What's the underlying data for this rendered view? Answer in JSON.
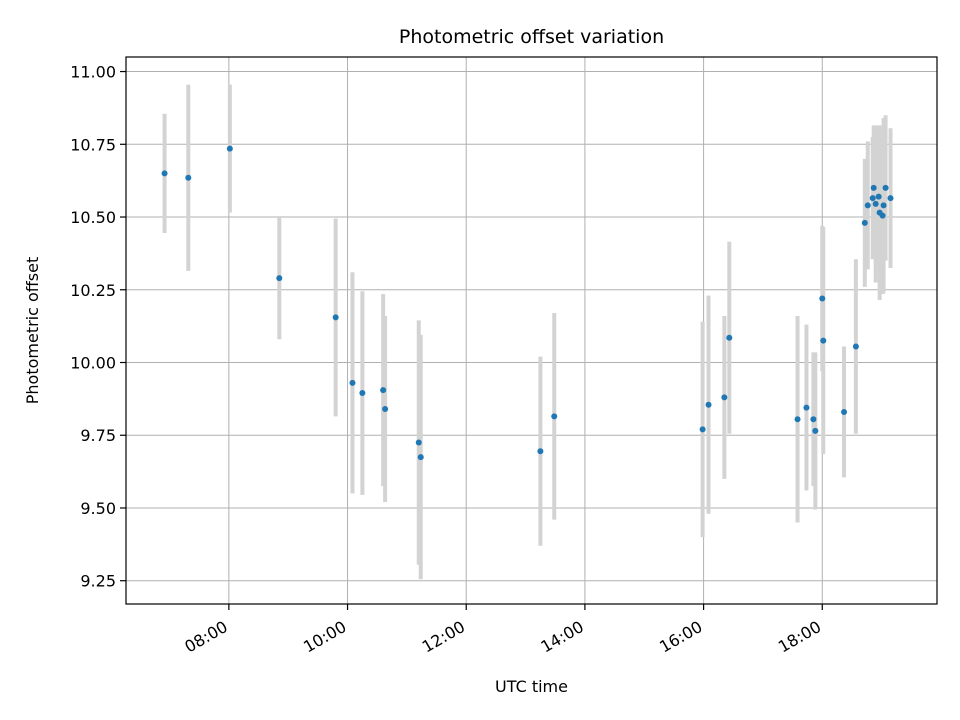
{
  "chart_data": {
    "type": "scatter",
    "title": "Photometric offset variation",
    "xlabel": "UTC time",
    "ylabel": "Photometric offset",
    "x_unit": "hours UTC",
    "xlim": [
      "06:16",
      "19:56"
    ],
    "ylim": [
      9.17,
      11.05
    ],
    "x_ticks": [
      "08:00",
      "10:00",
      "12:00",
      "14:00",
      "16:00",
      "18:00"
    ],
    "y_ticks": [
      "9.25",
      "9.50",
      "9.75",
      "10.00",
      "10.25",
      "10.50",
      "10.75",
      "11.00"
    ],
    "grid": true,
    "point_color": "#1f77b4",
    "errorbar_color": "#d3d3d3",
    "points": [
      {
        "time": "06:55",
        "y": 10.65,
        "err": 0.205
      },
      {
        "time": "07:19",
        "y": 10.635,
        "err": 0.32
      },
      {
        "time": "08:01",
        "y": 10.735,
        "err": 0.22
      },
      {
        "time": "08:51",
        "y": 10.29,
        "err": 0.21
      },
      {
        "time": "09:48",
        "y": 10.155,
        "err": 0.34
      },
      {
        "time": "10:05",
        "y": 9.93,
        "err": 0.38
      },
      {
        "time": "10:15",
        "y": 9.895,
        "err": 0.35
      },
      {
        "time": "10:36",
        "y": 9.905,
        "err": 0.33
      },
      {
        "time": "10:38",
        "y": 9.84,
        "err": 0.32
      },
      {
        "time": "11:12",
        "y": 9.725,
        "err": 0.42
      },
      {
        "time": "11:14",
        "y": 9.675,
        "err": 0.42
      },
      {
        "time": "13:15",
        "y": 9.695,
        "err": 0.325
      },
      {
        "time": "13:29",
        "y": 9.815,
        "err": 0.355
      },
      {
        "time": "15:59",
        "y": 9.77,
        "err": 0.37
      },
      {
        "time": "16:05",
        "y": 9.855,
        "err": 0.375
      },
      {
        "time": "16:21",
        "y": 9.88,
        "err": 0.28
      },
      {
        "time": "16:26",
        "y": 10.085,
        "err": 0.33
      },
      {
        "time": "17:35",
        "y": 9.805,
        "err": 0.355
      },
      {
        "time": "17:44",
        "y": 9.845,
        "err": 0.285
      },
      {
        "time": "17:51",
        "y": 9.805,
        "err": 0.23
      },
      {
        "time": "17:53",
        "y": 9.765,
        "err": 0.27
      },
      {
        "time": "18:00",
        "y": 10.22,
        "err": 0.25
      },
      {
        "time": "18:01",
        "y": 10.075,
        "err": 0.39
      },
      {
        "time": "18:22",
        "y": 9.83,
        "err": 0.225
      },
      {
        "time": "18:34",
        "y": 10.055,
        "err": 0.3
      },
      {
        "time": "18:43",
        "y": 10.48,
        "err": 0.22
      },
      {
        "time": "18:46",
        "y": 10.54,
        "err": 0.22
      },
      {
        "time": "18:51",
        "y": 10.565,
        "err": 0.21
      },
      {
        "time": "18:52",
        "y": 10.6,
        "err": 0.215
      },
      {
        "time": "18:54",
        "y": 10.545,
        "err": 0.27
      },
      {
        "time": "18:57",
        "y": 10.57,
        "err": 0.245
      },
      {
        "time": "18:58",
        "y": 10.515,
        "err": 0.3
      },
      {
        "time": "19:01",
        "y": 10.505,
        "err": 0.27
      },
      {
        "time": "19:02",
        "y": 10.54,
        "err": 0.3
      },
      {
        "time": "19:04",
        "y": 10.6,
        "err": 0.25
      },
      {
        "time": "19:09",
        "y": 10.565,
        "err": 0.24
      }
    ]
  }
}
